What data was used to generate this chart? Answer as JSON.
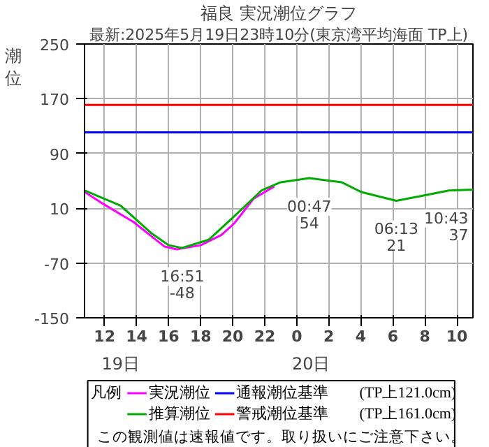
{
  "chart_data": {
    "type": "line",
    "title": "福良 実況潮位グラフ",
    "subtitle": "最新:2025年5月19日23時10分(東京湾平均海面 TP上)",
    "ylabel": "潮位",
    "legend_title": "凡例",
    "xlim": [
      "2025-05-19T10:45",
      "2025-05-20T11:00"
    ],
    "xticks": [
      {
        "value": "2025-05-19T12:00",
        "label": "12"
      },
      {
        "value": "2025-05-19T14:00",
        "label": "14"
      },
      {
        "value": "2025-05-19T16:00",
        "label": "16"
      },
      {
        "value": "2025-05-19T18:00",
        "label": "18"
      },
      {
        "value": "2025-05-19T20:00",
        "label": "20"
      },
      {
        "value": "2025-05-19T22:00",
        "label": "22"
      },
      {
        "value": "2025-05-20T00:00",
        "label": "0"
      },
      {
        "value": "2025-05-20T02:00",
        "label": "2"
      },
      {
        "value": "2025-05-20T04:00",
        "label": "4"
      },
      {
        "value": "2025-05-20T06:00",
        "label": "6"
      },
      {
        "value": "2025-05-20T08:00",
        "label": "8"
      },
      {
        "value": "2025-05-20T10:00",
        "label": "10"
      }
    ],
    "ylim": [
      -150,
      250
    ],
    "yticks": [
      -150,
      -70,
      10,
      90,
      170,
      250
    ],
    "grid": true,
    "legend": "bottom",
    "series": [
      {
        "name": "実況潮位",
        "color": "#ff00ff",
        "x": [
          "2025-05-19T10:45",
          "2025-05-19T11:48",
          "2025-05-19T13:48",
          "2025-05-19T15:45",
          "2025-05-19T16:30",
          "2025-05-19T18:00",
          "2025-05-19T19:18",
          "2025-05-19T20:06",
          "2025-05-19T21:18",
          "2025-05-19T22:36"
        ],
        "values": [
          34,
          18,
          -10,
          -46,
          -50,
          -44,
          -29,
          -12,
          24,
          42
        ]
      },
      {
        "name": "推算潮位",
        "color": "#00aa00",
        "x": [
          "2025-05-19T10:45",
          "2025-05-19T13:00",
          "2025-05-19T14:54",
          "2025-05-19T16:00",
          "2025-05-19T16:51",
          "2025-05-19T18:30",
          "2025-05-19T19:54",
          "2025-05-19T21:48",
          "2025-05-19T23:00",
          "2025-05-20T00:47",
          "2025-05-20T02:48",
          "2025-05-20T04:00",
          "2025-05-20T06:13",
          "2025-05-20T07:48",
          "2025-05-20T09:30",
          "2025-05-20T10:43",
          "2025-05-20T11:00"
        ],
        "values": [
          36,
          14,
          -26,
          -44,
          -48,
          -36,
          -6,
          36,
          48,
          54,
          48,
          34,
          21,
          28,
          36,
          37,
          37
        ]
      }
    ],
    "ref_lines": [
      {
        "axis": "y",
        "value": 121,
        "label": "通報潮位基準　　(TP上121.0cm)",
        "color": "#0000ff"
      },
      {
        "axis": "y",
        "value": 161,
        "label": "警戒潮位基準　　(TP上161.0cm)",
        "color": "#ff0000"
      }
    ],
    "annotations": [
      {
        "text": "16:51\n-48",
        "x": "2025-05-19T16:51",
        "y": -48
      },
      {
        "text": "00:47\n54",
        "x": "2025-05-20T00:47",
        "y": 54
      },
      {
        "text": "06:13\n21",
        "x": "2025-05-20T06:13",
        "y": 21
      },
      {
        "text": "10:43\n37",
        "x": "2025-05-20T10:43",
        "y": 37
      },
      "19日",
      "20日",
      "この観測値は速報値です。取り扱いにご注意下さい。"
    ]
  }
}
